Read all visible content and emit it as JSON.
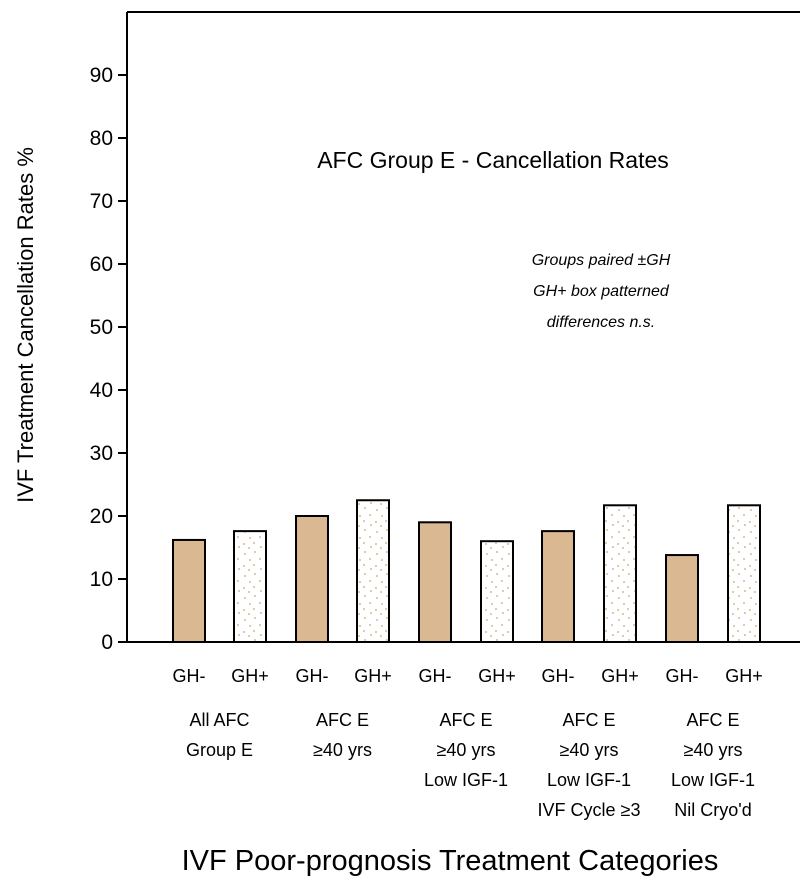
{
  "chart_data": {
    "type": "bar",
    "title": "AFC Group E - Cancellation Rates",
    "annotations": [
      "Groups paired ±GH",
      "GH+ box patterned",
      "differences n.s."
    ],
    "xlabel": "IVF Poor-prognosis Treatment Categories",
    "ylabel": "IVF Treatment Cancellation Rates %",
    "ylim": [
      0,
      100
    ],
    "yticks": [
      0,
      10,
      20,
      30,
      40,
      50,
      60,
      70,
      80,
      90
    ],
    "grid": false,
    "legend": "none",
    "categories": [
      "GH-",
      "GH+",
      "GH-",
      "GH+",
      "GH-",
      "GH+",
      "GH-",
      "GH+",
      "GH-",
      "GH+"
    ],
    "values": [
      16.2,
      17.6,
      20.0,
      22.5,
      19.0,
      16.0,
      17.6,
      21.7,
      13.8,
      21.7
    ],
    "groups": [
      {
        "label_lines": [
          "All AFC",
          "Group E"
        ]
      },
      {
        "label_lines": [
          "AFC E",
          "≥40 yrs"
        ]
      },
      {
        "label_lines": [
          "AFC E",
          "≥40 yrs",
          "Low IGF-1"
        ]
      },
      {
        "label_lines": [
          "AFC E",
          "≥40 yrs",
          "Low IGF-1",
          "IVF Cycle ≥3"
        ]
      },
      {
        "label_lines": [
          "AFC E",
          "≥40 yrs",
          "Low IGF-1",
          "Nil Cryo'd"
        ]
      }
    ],
    "colors": {
      "gh_minus_fill": "#d9b892",
      "gh_plus_fill": "#ffffff",
      "gh_plus_dots": "#d9b892",
      "stroke": "#000000"
    }
  }
}
